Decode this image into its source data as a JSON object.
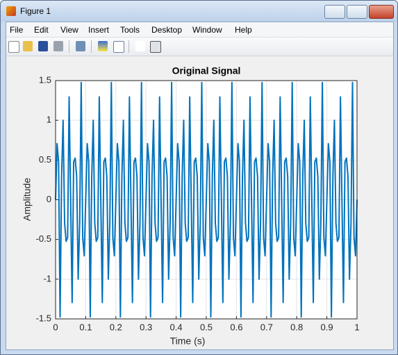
{
  "window": {
    "title": "Figure 1",
    "menu": [
      "File",
      "Edit",
      "View",
      "Insert",
      "Tools",
      "Desktop",
      "Window",
      "Help"
    ]
  },
  "chart_data": {
    "type": "line",
    "title": "Original Signal",
    "xlabel": "Time (s)",
    "ylabel": "Amplitude",
    "color": "#0072bd",
    "grid": true,
    "xlim": [
      0,
      1
    ],
    "ylim": [
      -1.5,
      1.5
    ],
    "xticks": [
      0,
      0.1,
      0.2,
      0.3,
      0.4,
      0.5,
      0.6,
      0.7,
      0.8,
      0.9,
      1
    ],
    "yticks": [
      -1.5,
      -1,
      -0.5,
      0,
      0.5,
      1,
      1.5
    ],
    "x": [
      0,
      0.005,
      0.01,
      0.015,
      0.02,
      0.025,
      0.03,
      0.035,
      0.04,
      0.045,
      0.05,
      0.055,
      0.06,
      0.065,
      0.07,
      0.075,
      0.08,
      0.085,
      0.09,
      0.095,
      0.1,
      0.105,
      0.11,
      0.115,
      0.12,
      0.125,
      0.13,
      0.135,
      0.14,
      0.145,
      0.15,
      0.155,
      0.16,
      0.165,
      0.17,
      0.175,
      0.18,
      0.185,
      0.19,
      0.195,
      0.2,
      0.205,
      0.21,
      0.215,
      0.22,
      0.225,
      0.23,
      0.235,
      0.24,
      0.245,
      0.25,
      0.255,
      0.26,
      0.265,
      0.27,
      0.275,
      0.28,
      0.285,
      0.29,
      0.295,
      0.3,
      0.305,
      0.31,
      0.315,
      0.32,
      0.325,
      0.33,
      0.335,
      0.34,
      0.345,
      0.35,
      0.355,
      0.36,
      0.365,
      0.37,
      0.375,
      0.38,
      0.385,
      0.39,
      0.395,
      0.4,
      0.405,
      0.41,
      0.415,
      0.42,
      0.425,
      0.43,
      0.435,
      0.44,
      0.445,
      0.45,
      0.455,
      0.46,
      0.465,
      0.47,
      0.475,
      0.48,
      0.485,
      0.49,
      0.495,
      0.5,
      0.505,
      0.51,
      0.515,
      0.52,
      0.525,
      0.53,
      0.535,
      0.54,
      0.545,
      0.55,
      0.555,
      0.56,
      0.565,
      0.57,
      0.575,
      0.58,
      0.585,
      0.59,
      0.595,
      0.6,
      0.605,
      0.61,
      0.615,
      0.62,
      0.625,
      0.63,
      0.635,
      0.64,
      0.645,
      0.65,
      0.655,
      0.66,
      0.665,
      0.67,
      0.675,
      0.68,
      0.685,
      0.69,
      0.695,
      0.7,
      0.705,
      0.71,
      0.715,
      0.72,
      0.725,
      0.73,
      0.735,
      0.74,
      0.745,
      0.75,
      0.755,
      0.76,
      0.765,
      0.77,
      0.775,
      0.78,
      0.785,
      0.79,
      0.795,
      0.8,
      0.805,
      0.81,
      0.815,
      0.82,
      0.825,
      0.83,
      0.835,
      0.84,
      0.845,
      0.85,
      0.855,
      0.86,
      0.865,
      0.87,
      0.875,
      0.88,
      0.885,
      0.89,
      0.895,
      0.9,
      0.905,
      0.91,
      0.915,
      0.92,
      0.925,
      0.93,
      0.935,
      0.94,
      0.945,
      0.95,
      0.955,
      0.96,
      0.965,
      0.97,
      0.975,
      0.98,
      0.985,
      0.99,
      0.995,
      1
    ],
    "values": [
      0,
      0.706,
      0.476,
      -1.476,
      0.294,
      1,
      -0.294,
      -0.524,
      -0.476,
      1.294,
      0,
      -1.294,
      0.476,
      0.524,
      0.294,
      -1,
      -0.294,
      1.476,
      -0.476,
      -0.706,
      0,
      0.706,
      0.476,
      -1.476,
      0.294,
      1,
      -0.294,
      -0.524,
      -0.476,
      1.294,
      0,
      -1.294,
      0.476,
      0.524,
      0.294,
      -1,
      -0.294,
      1.476,
      -0.476,
      -0.706,
      0,
      0.706,
      0.476,
      -1.476,
      0.294,
      1,
      -0.294,
      -0.524,
      -0.476,
      1.294,
      0,
      -1.294,
      0.476,
      0.524,
      0.294,
      -1,
      -0.294,
      1.476,
      -0.476,
      -0.706,
      0,
      0.706,
      0.476,
      -1.476,
      0.294,
      1,
      -0.294,
      -0.524,
      -0.476,
      1.294,
      0,
      -1.294,
      0.476,
      0.524,
      0.294,
      -1,
      -0.294,
      1.476,
      -0.476,
      -0.706,
      0,
      0.706,
      0.476,
      -1.476,
      0.294,
      1,
      -0.294,
      -0.524,
      -0.476,
      1.294,
      0,
      -1.294,
      0.476,
      0.524,
      0.294,
      -1,
      -0.294,
      1.476,
      -0.476,
      -0.706,
      0,
      0.706,
      0.476,
      -1.476,
      0.294,
      1,
      -0.294,
      -0.524,
      -0.476,
      1.294,
      0,
      -1.294,
      0.476,
      0.524,
      0.294,
      -1,
      -0.294,
      1.476,
      -0.476,
      -0.706,
      0,
      0.706,
      0.476,
      -1.476,
      0.294,
      1,
      -0.294,
      -0.524,
      -0.476,
      1.294,
      0,
      -1.294,
      0.476,
      0.524,
      0.294,
      -1,
      -0.294,
      1.476,
      -0.476,
      -0.706,
      0,
      0.706,
      0.476,
      -1.476,
      0.294,
      1,
      -0.294,
      -0.524,
      -0.476,
      1.294,
      0,
      -1.294,
      0.476,
      0.524,
      0.294,
      -1,
      -0.294,
      1.476,
      -0.476,
      -0.706,
      0,
      0.706,
      0.476,
      -1.476,
      0.294,
      1,
      -0.294,
      -0.524,
      -0.476,
      1.294,
      0,
      -1.294,
      0.476,
      0.524,
      0.294,
      -1,
      -0.294,
      1.476,
      -0.476,
      -0.706,
      0,
      0.706,
      0.476,
      -1.476,
      0.294,
      1,
      -0.294,
      -0.524,
      -0.476,
      1.294,
      0,
      -1.294,
      0.476,
      0.524,
      0.294,
      -1,
      -0.294,
      1.476,
      -0.476,
      -0.706,
      0
    ]
  }
}
